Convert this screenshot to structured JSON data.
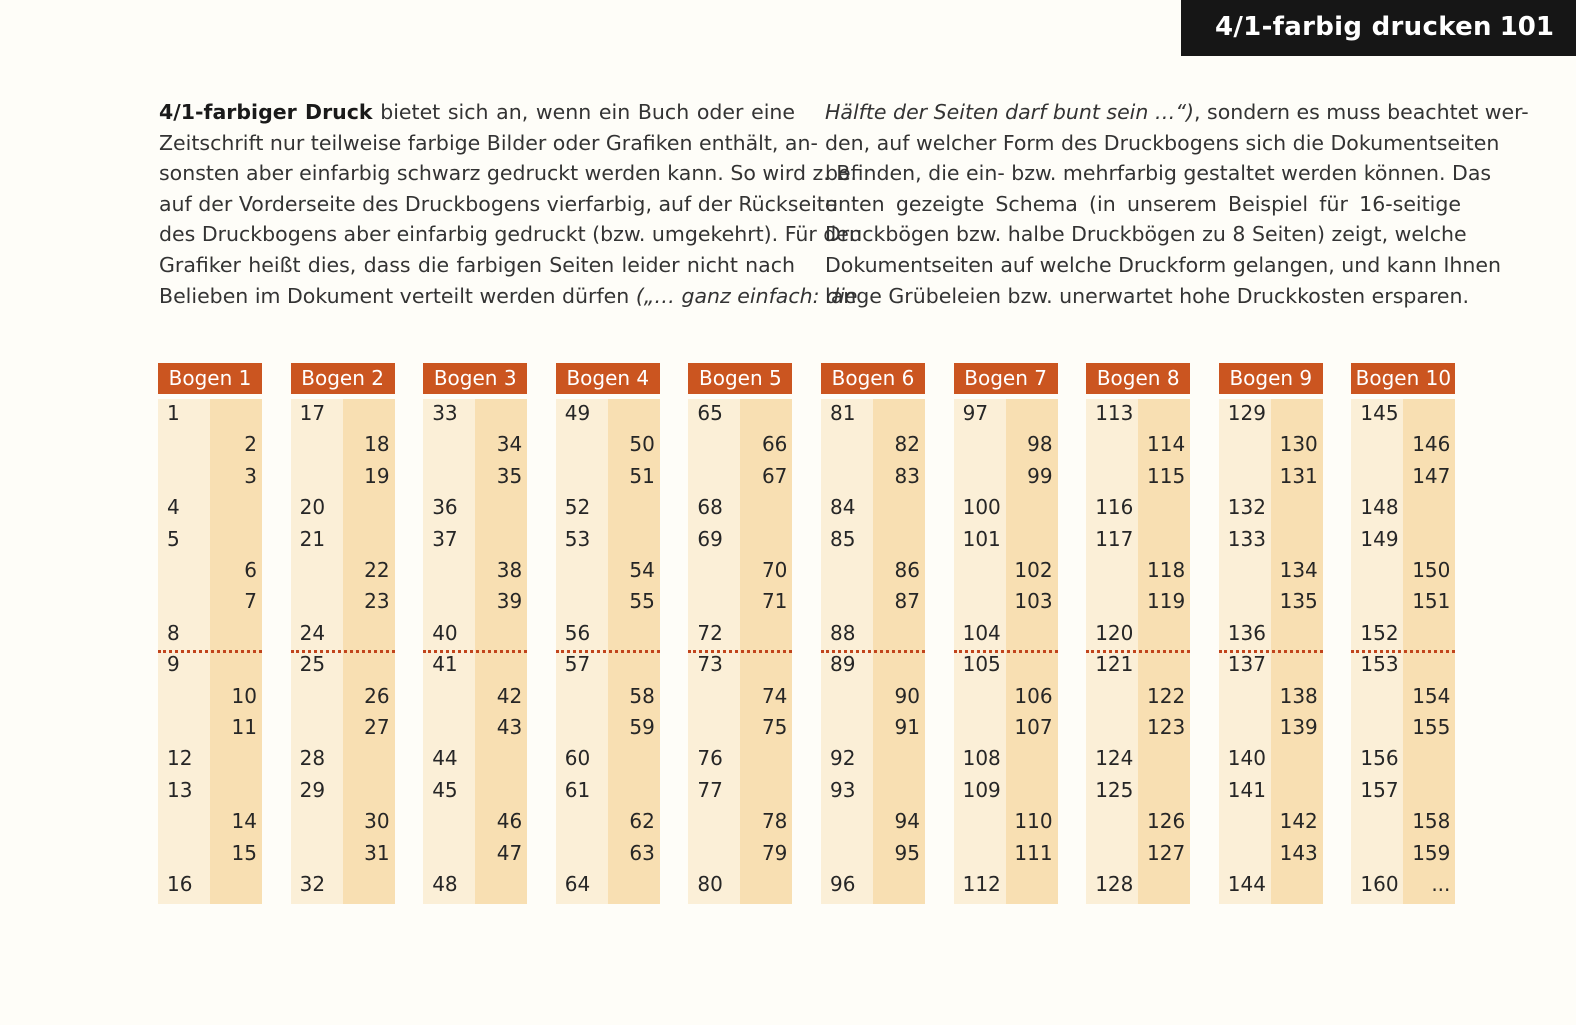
{
  "header": {
    "title": "4/1-farbig drucken",
    "page_number": "101"
  },
  "text": {
    "left_lines": [
      {
        "bold": "4/1-farbiger Druck",
        "text": " bietet sich an, wenn ein Buch oder eine"
      },
      {
        "text": "Zeitschrift nur teilweise farbige Bilder oder Grafiken enthält, an-"
      },
      {
        "text": "sonsten aber einfarbig schwarz gedruckt werden kann. So wird z. B."
      },
      {
        "text": "auf der Vorderseite des Druckbogens vierfarbig, auf der Rückseite"
      },
      {
        "text": "des Druckbogens aber einfarbig gedruckt (bzw. umgekehrt). Für den"
      },
      {
        "text": "Grafiker heißt dies, dass die farbigen Seiten leider nicht nach"
      },
      {
        "text": "Belieben im Dokument verteilt werden dürfen ",
        "italic": "(„… ganz einfach: die"
      }
    ],
    "right_lines": [
      {
        "italic": "Hälfte der Seiten darf bunt sein …“)",
        "text": ", sondern es muss beachtet wer-"
      },
      {
        "text": "den, auf welcher Form des Druckbogens sich die Dokumentseiten"
      },
      {
        "text": "befinden, die ein- bzw. mehrfarbig gestaltet werden können. Das"
      },
      {
        "text": "unten gezeigte Schema (in unserem Beispiel für 16-seitige"
      },
      {
        "text": "Druckbögen bzw. halbe Druckbögen zu 8 Seiten) zeigt, welche"
      },
      {
        "text": "Dokumentseiten auf welche Druckform gelangen, und kann Ihnen"
      },
      {
        "text": "lange Grübeleien bzw. unerwartet hohe Druckkosten ersparen."
      }
    ]
  },
  "bogen_layout": [
    "L",
    "R",
    "R",
    "L",
    "L",
    "R",
    "R",
    "L",
    "L",
    "R",
    "R",
    "L",
    "L",
    "R",
    "R",
    "L"
  ],
  "bogen": [
    {
      "label": "Bogen 1",
      "pages": [
        "1",
        "2",
        "3",
        "4",
        "5",
        "6",
        "7",
        "8",
        "9",
        "10",
        "11",
        "12",
        "13",
        "14",
        "15",
        "16"
      ]
    },
    {
      "label": "Bogen 2",
      "pages": [
        "17",
        "18",
        "19",
        "20",
        "21",
        "22",
        "23",
        "24",
        "25",
        "26",
        "27",
        "28",
        "29",
        "30",
        "31",
        "32"
      ]
    },
    {
      "label": "Bogen 3",
      "pages": [
        "33",
        "34",
        "35",
        "36",
        "37",
        "38",
        "39",
        "40",
        "41",
        "42",
        "43",
        "44",
        "45",
        "46",
        "47",
        "48"
      ]
    },
    {
      "label": "Bogen 4",
      "pages": [
        "49",
        "50",
        "51",
        "52",
        "53",
        "54",
        "55",
        "56",
        "57",
        "58",
        "59",
        "60",
        "61",
        "62",
        "63",
        "64"
      ]
    },
    {
      "label": "Bogen 5",
      "pages": [
        "65",
        "66",
        "67",
        "68",
        "69",
        "70",
        "71",
        "72",
        "73",
        "74",
        "75",
        "76",
        "77",
        "78",
        "79",
        "80"
      ]
    },
    {
      "label": "Bogen 6",
      "pages": [
        "81",
        "82",
        "83",
        "84",
        "85",
        "86",
        "87",
        "88",
        "89",
        "90",
        "91",
        "92",
        "93",
        "94",
        "95",
        "96"
      ]
    },
    {
      "label": "Bogen 7",
      "pages": [
        "97",
        "98",
        "99",
        "100",
        "101",
        "102",
        "103",
        "104",
        "105",
        "106",
        "107",
        "108",
        "109",
        "110",
        "111",
        "112"
      ]
    },
    {
      "label": "Bogen 8",
      "pages": [
        "113",
        "114",
        "115",
        "116",
        "117",
        "118",
        "119",
        "120",
        "121",
        "122",
        "123",
        "124",
        "125",
        "126",
        "127",
        "128"
      ]
    },
    {
      "label": "Bogen 9",
      "pages": [
        "129",
        "130",
        "131",
        "132",
        "133",
        "134",
        "135",
        "136",
        "137",
        "138",
        "139",
        "140",
        "141",
        "142",
        "143",
        "144"
      ]
    },
    {
      "label": "Bogen 10",
      "pages": [
        "145",
        "146",
        "147",
        "148",
        "149",
        "150",
        "151",
        "152",
        "153",
        "154",
        "155",
        "156",
        "157",
        "158",
        "159",
        "160"
      ],
      "extra": "..."
    }
  ],
  "colors": {
    "header_bg": "#161616",
    "bogen_header": "#cb5520",
    "column_light": "#fbefd7",
    "column_dark": "#f8dfb2",
    "divider": "#c1441c"
  }
}
